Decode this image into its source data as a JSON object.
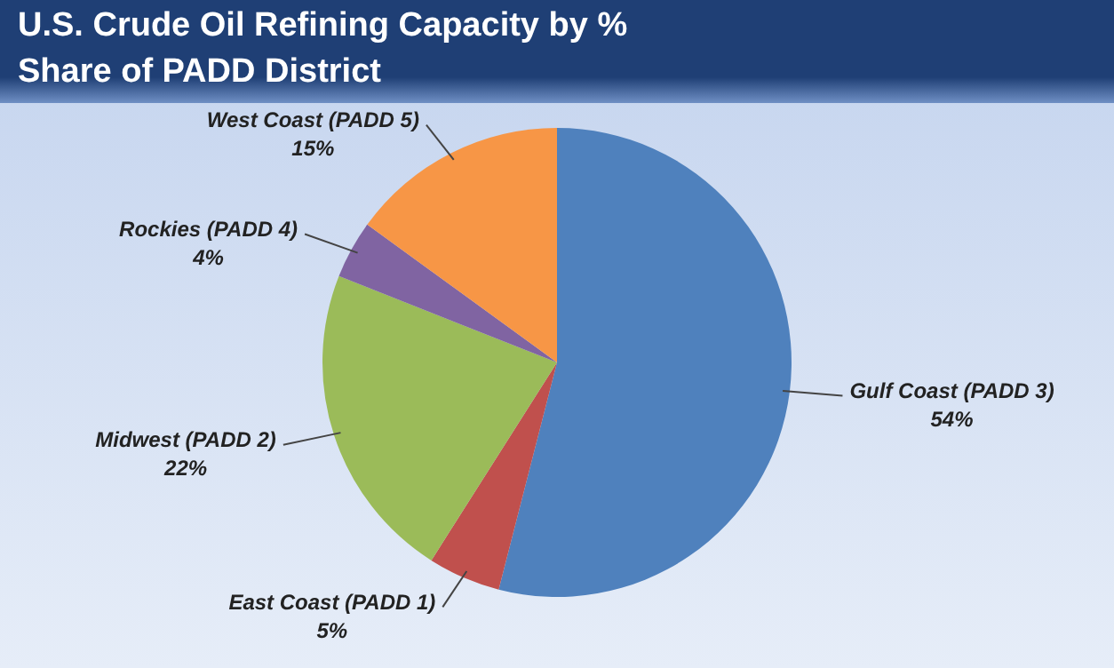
{
  "chart_data": {
    "type": "pie",
    "title": "U.S. Crude Oil Refining Capacity by % Share of PADD District",
    "categories": [
      "Gulf Coast (PADD 3)",
      "East Coast (PADD 1)",
      "Midwest (PADD 2)",
      "Rockies (PADD 4)",
      "West Coast (PADD 5)"
    ],
    "values": [
      54,
      5,
      22,
      4,
      15
    ],
    "colors": [
      "#4f81bd",
      "#c0504d",
      "#9bbb59",
      "#8064a2",
      "#f79646"
    ],
    "value_labels": [
      "54%",
      "5%",
      "22%",
      "4%",
      "15%"
    ],
    "legend": false
  }
}
